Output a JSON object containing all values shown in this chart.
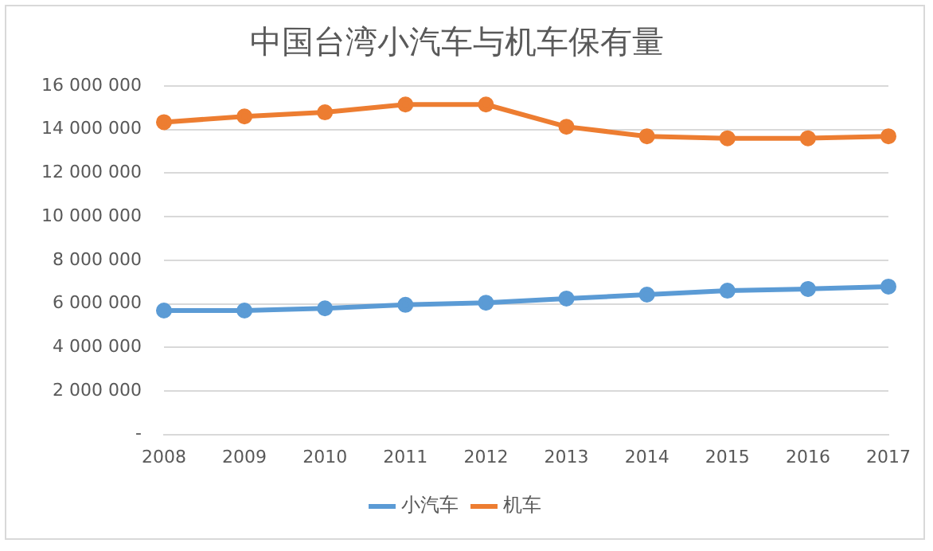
{
  "chart_data": {
    "type": "line",
    "title": "中国台湾小汽车与机车保有量",
    "categories": [
      "2008",
      "2009",
      "2010",
      "2011",
      "2012",
      "2013",
      "2014",
      "2015",
      "2016",
      "2017"
    ],
    "series": [
      {
        "name": "小汽车",
        "color": "#5b9bd5",
        "values": [
          5690000,
          5690000,
          5790000,
          5950000,
          6050000,
          6240000,
          6420000,
          6600000,
          6680000,
          6790000
        ]
      },
      {
        "name": "机车",
        "color": "#ed7d31",
        "values": [
          14340000,
          14600000,
          14790000,
          15150000,
          15150000,
          14130000,
          13690000,
          13600000,
          13600000,
          13690000
        ]
      }
    ],
    "ylim": [
      0,
      16000000
    ],
    "yticks": [
      {
        "value": 0,
        "label": "-"
      },
      {
        "value": 2000000,
        "label": "2 000 000"
      },
      {
        "value": 4000000,
        "label": "4 000 000"
      },
      {
        "value": 6000000,
        "label": "6 000 000"
      },
      {
        "value": 8000000,
        "label": "8 000 000"
      },
      {
        "value": 10000000,
        "label": "10 000 000"
      },
      {
        "value": 12000000,
        "label": "12 000 000"
      },
      {
        "value": 14000000,
        "label": "14 000 000"
      },
      {
        "value": 16000000,
        "label": "16 000 000"
      }
    ],
    "grid": "y",
    "legend": "bottom",
    "marker": "circle",
    "line_style": "solid"
  }
}
